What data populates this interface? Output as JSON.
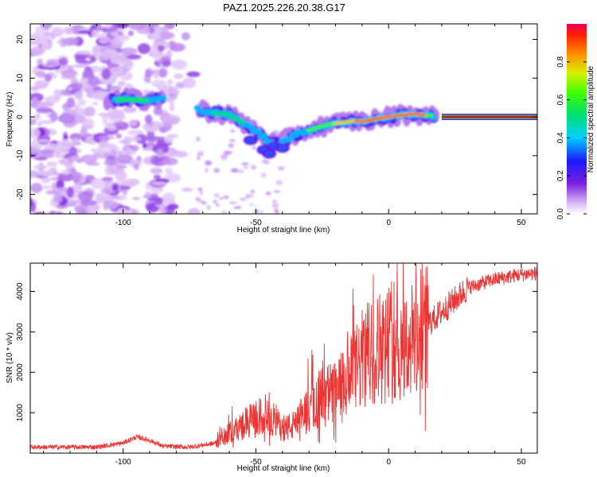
{
  "title": "PAZ1.2025.226.20.38.G17",
  "chart_data": [
    {
      "type": "heatmap",
      "title": "PAZ1.2025.226.20.38.G17",
      "xlabel": "Height of straight line (km)",
      "ylabel": "Frequency (Hz)",
      "xlim": [
        -135,
        56
      ],
      "ylim": [
        -25,
        24
      ],
      "xticks": [
        -100,
        -50,
        0,
        50
      ],
      "yticks": [
        -20,
        -10,
        0,
        10,
        20
      ],
      "colorbar": {
        "label": "Normalized spectral amplitude",
        "range": [
          0,
          1
        ],
        "ticks": [
          "0.0",
          "0.2",
          "0.4",
          "0.6",
          "0.8"
        ],
        "colormap": "rainbow"
      },
      "ridge_x": [
        -103,
        -97,
        -91,
        -85,
        -72,
        -65,
        -60,
        -55,
        -50,
        -45,
        -42,
        -39,
        -36,
        -33,
        -28,
        -23,
        -18,
        -13,
        -9,
        -5,
        0,
        5,
        10,
        15,
        20,
        56
      ],
      "ridge_freq": [
        4.5,
        4.5,
        4.2,
        4.6,
        2.0,
        1.0,
        0.5,
        -1.5,
        -3.5,
        -6.5,
        -7.0,
        -6.0,
        -5.0,
        -4.0,
        -3.0,
        -2.0,
        -1.5,
        -1.0,
        -1.2,
        -0.5,
        0.0,
        0.5,
        0.8,
        0.3,
        0.0,
        0.0
      ]
    },
    {
      "type": "line",
      "xlabel": "Height of straight line (km)",
      "ylabel": "SNR (10 * v/v)",
      "xlim": [
        -135,
        56
      ],
      "ylim": [
        0,
        4700
      ],
      "xticks": [
        -100,
        -50,
        0,
        50
      ],
      "yticks": [
        1000,
        2000,
        3000,
        4000
      ],
      "color": "#ee3333",
      "series": [
        {
          "x": [
            -135,
            -120,
            -110,
            -100,
            -95,
            -90,
            -85,
            -75,
            -65,
            -60,
            -55,
            -50,
            -45,
            -40,
            -35,
            -30,
            -25,
            -20,
            -15,
            -10,
            -5,
            0,
            5,
            10,
            15,
            20,
            25,
            30,
            40,
            50,
            56
          ],
          "y": [
            150,
            150,
            150,
            250,
            400,
            320,
            170,
            150,
            250,
            500,
            700,
            850,
            1000,
            600,
            700,
            1150,
            1400,
            1500,
            1800,
            2300,
            2600,
            2700,
            2600,
            2800,
            3200,
            3500,
            3800,
            4100,
            4300,
            4420,
            4450
          ]
        }
      ]
    }
  ]
}
